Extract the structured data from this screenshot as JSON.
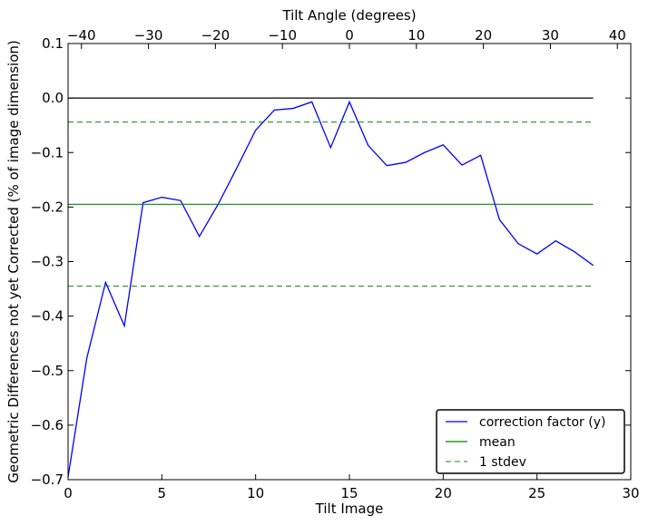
{
  "chart_data": {
    "type": "line",
    "xlabel": "Tilt Image",
    "ylabel": "Geometric Differences not yet Corrected (% of image dimension)",
    "x2label": "Tilt Angle (degrees)",
    "xlim": [
      0,
      30
    ],
    "ylim": [
      -0.7,
      0.1
    ],
    "x2lim": [
      -42,
      42
    ],
    "xticks": [
      0,
      5,
      10,
      15,
      20,
      25,
      30
    ],
    "yticks": [
      0.1,
      0.0,
      -0.1,
      -0.2,
      -0.3,
      -0.4,
      -0.5,
      -0.6,
      -0.7
    ],
    "x2ticks": [
      -40,
      -30,
      -20,
      -10,
      0,
      10,
      20,
      30,
      40
    ],
    "xtick_labels": [
      "0",
      "5",
      "10",
      "15",
      "20",
      "25",
      "30"
    ],
    "ytick_labels": [
      "0.1",
      "0.0",
      "−0.1",
      "−0.2",
      "−0.3",
      "−0.4",
      "−0.5",
      "−0.6",
      "−0.7"
    ],
    "x2tick_labels": [
      "−40",
      "−30",
      "−20",
      "−10",
      "0",
      "10",
      "20",
      "30",
      "40"
    ],
    "grid": false,
    "legend_position": "bottom-right",
    "series": [
      {
        "name": "correction factor (y)",
        "color": "#0000ff",
        "style": "solid",
        "x": [
          0,
          1,
          2,
          3,
          4,
          5,
          6,
          7,
          8,
          9,
          10,
          11,
          12,
          13,
          14,
          15,
          16,
          17,
          18,
          19,
          20,
          21,
          22,
          23,
          24,
          25,
          26,
          27,
          28
        ],
        "y": [
          -0.695,
          -0.477,
          -0.338,
          -0.418,
          -0.192,
          -0.182,
          -0.188,
          -0.254,
          -0.195,
          -0.128,
          -0.059,
          -0.022,
          -0.019,
          -0.007,
          -0.091,
          -0.007,
          -0.087,
          -0.124,
          -0.118,
          -0.1,
          -0.086,
          -0.123,
          -0.105,
          -0.223,
          -0.267,
          -0.286,
          -0.262,
          -0.282,
          -0.307
        ]
      },
      {
        "name": "mean",
        "color": "#008000",
        "style": "solid",
        "x": [
          0,
          28
        ],
        "y": [
          -0.195,
          -0.195
        ]
      },
      {
        "name": "1 stdev",
        "color": "#008000",
        "style": "dashed",
        "x": [
          0,
          28
        ],
        "y": [
          -0.044,
          -0.044
        ]
      },
      {
        "name": "",
        "color": "#008000",
        "style": "dashed",
        "x": [
          0,
          28
        ],
        "y": [
          -0.345,
          -0.345
        ]
      },
      {
        "name": "",
        "color": "#000000",
        "style": "solid",
        "x": [
          0,
          28
        ],
        "y": [
          0.0,
          0.0
        ]
      }
    ],
    "legend": [
      "correction factor (y)",
      "mean",
      "1 stdev"
    ]
  }
}
